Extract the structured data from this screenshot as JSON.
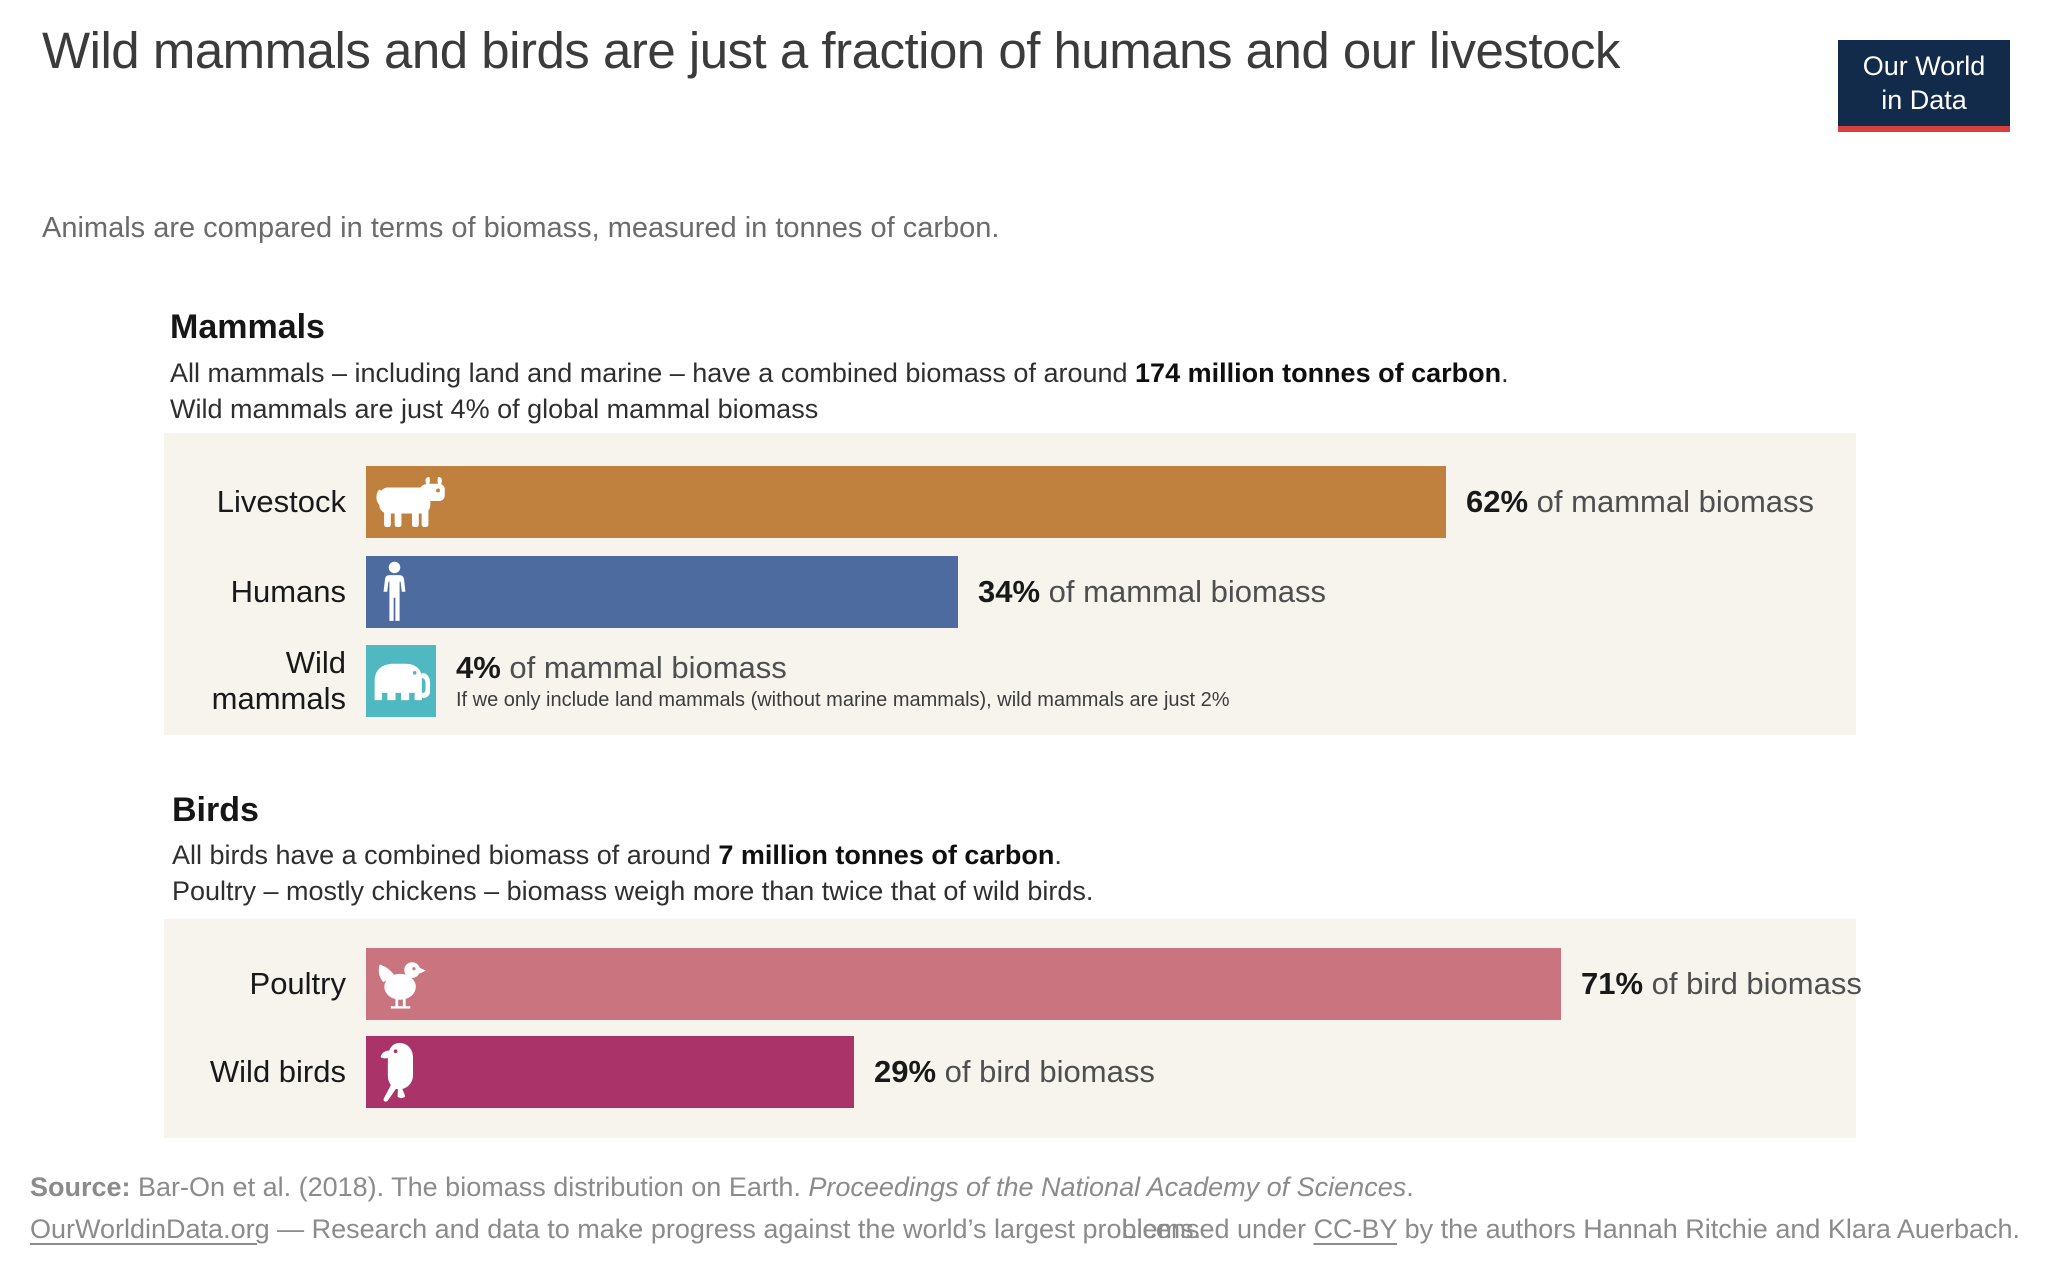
{
  "header": {
    "title": "Wild mammals and birds are just a fraction of humans and our livestock",
    "subtitle": "Animals are compared in terms of biomass, measured in tonnes of carbon.",
    "logo": {
      "line1": "Our World",
      "line2": "in Data",
      "bg": "#132b4b",
      "accent": "#d7403d",
      "text_color": "#ffffff"
    }
  },
  "mammals": {
    "heading": "Mammals",
    "desc1_pre": "All mammals – including land and marine – have a combined biomass of around ",
    "desc1_bold": "174 million tonnes of carbon",
    "desc1_post": ".",
    "desc2": "Wild mammals are just 4% of global mammal biomass",
    "panel_bg": "#f7f4ee",
    "rows": [
      {
        "label": "Livestock",
        "icon": "cow-icon",
        "value": 62,
        "value_label": "62%",
        "value_suffix": " of mammal biomass",
        "color": "#c0813f"
      },
      {
        "label": "Humans",
        "icon": "person-icon",
        "value": 34,
        "value_label": "34%",
        "value_suffix": " of mammal biomass",
        "color": "#4d6b9e"
      },
      {
        "label": "Wild mammals",
        "icon": "elephant-icon",
        "value": 4,
        "value_label": "4%",
        "value_suffix": " of mammal biomass",
        "color": "#4fb8c1",
        "note": "If we only include land mammals (without marine mammals), wild mammals are just 2%"
      }
    ]
  },
  "birds": {
    "heading": "Birds",
    "desc1_pre": "All birds have a combined biomass of around ",
    "desc1_bold": "7 million tonnes of carbon",
    "desc1_post": ".",
    "desc2": "Poultry – mostly chickens – biomass weigh more than twice that of wild birds.",
    "panel_bg": "#f7f4ee",
    "rows": [
      {
        "label": "Poultry",
        "icon": "chicken-icon",
        "value": 71,
        "value_label": "71%",
        "value_suffix": " of bird biomass",
        "color": "#ca7480"
      },
      {
        "label": "Wild birds",
        "icon": "parrot-icon",
        "value": 29,
        "value_label": "29%",
        "value_suffix": " of bird biomass",
        "color": "#aa3469"
      }
    ]
  },
  "footer": {
    "source_label": "Source:",
    "source_text": " Bar-On et al. (2018). The biomass distribution on Earth. ",
    "source_italic": "Proceedings of the National Academy of Sciences",
    "source_post": ".",
    "site_link": "OurWorldinData.org",
    "site_text": " — Research and data to make progress against the world’s largest problems.",
    "license_pre": "Licensed under ",
    "license_link": "CC-BY",
    "license_post": " by the authors Hannah Ritchie and Klara Auerbach."
  },
  "chart_data": [
    {
      "type": "bar",
      "title": "Mammals",
      "categories": [
        "Livestock",
        "Humans",
        "Wild mammals"
      ],
      "values": [
        62,
        34,
        4
      ],
      "unit": "% of mammal biomass",
      "colors": [
        "#c0813f",
        "#4d6b9e",
        "#4fb8c1"
      ],
      "xlim": [
        0,
        100
      ],
      "annotations": [
        "If we only include land mammals (without marine mammals), wild mammals are just 2%"
      ],
      "legend": "none",
      "grid": false
    },
    {
      "type": "bar",
      "title": "Birds",
      "categories": [
        "Poultry",
        "Wild birds"
      ],
      "values": [
        71,
        29
      ],
      "unit": "% of bird biomass",
      "colors": [
        "#ca7480",
        "#aa3469"
      ],
      "xlim": [
        0,
        100
      ],
      "legend": "none",
      "grid": false
    }
  ]
}
